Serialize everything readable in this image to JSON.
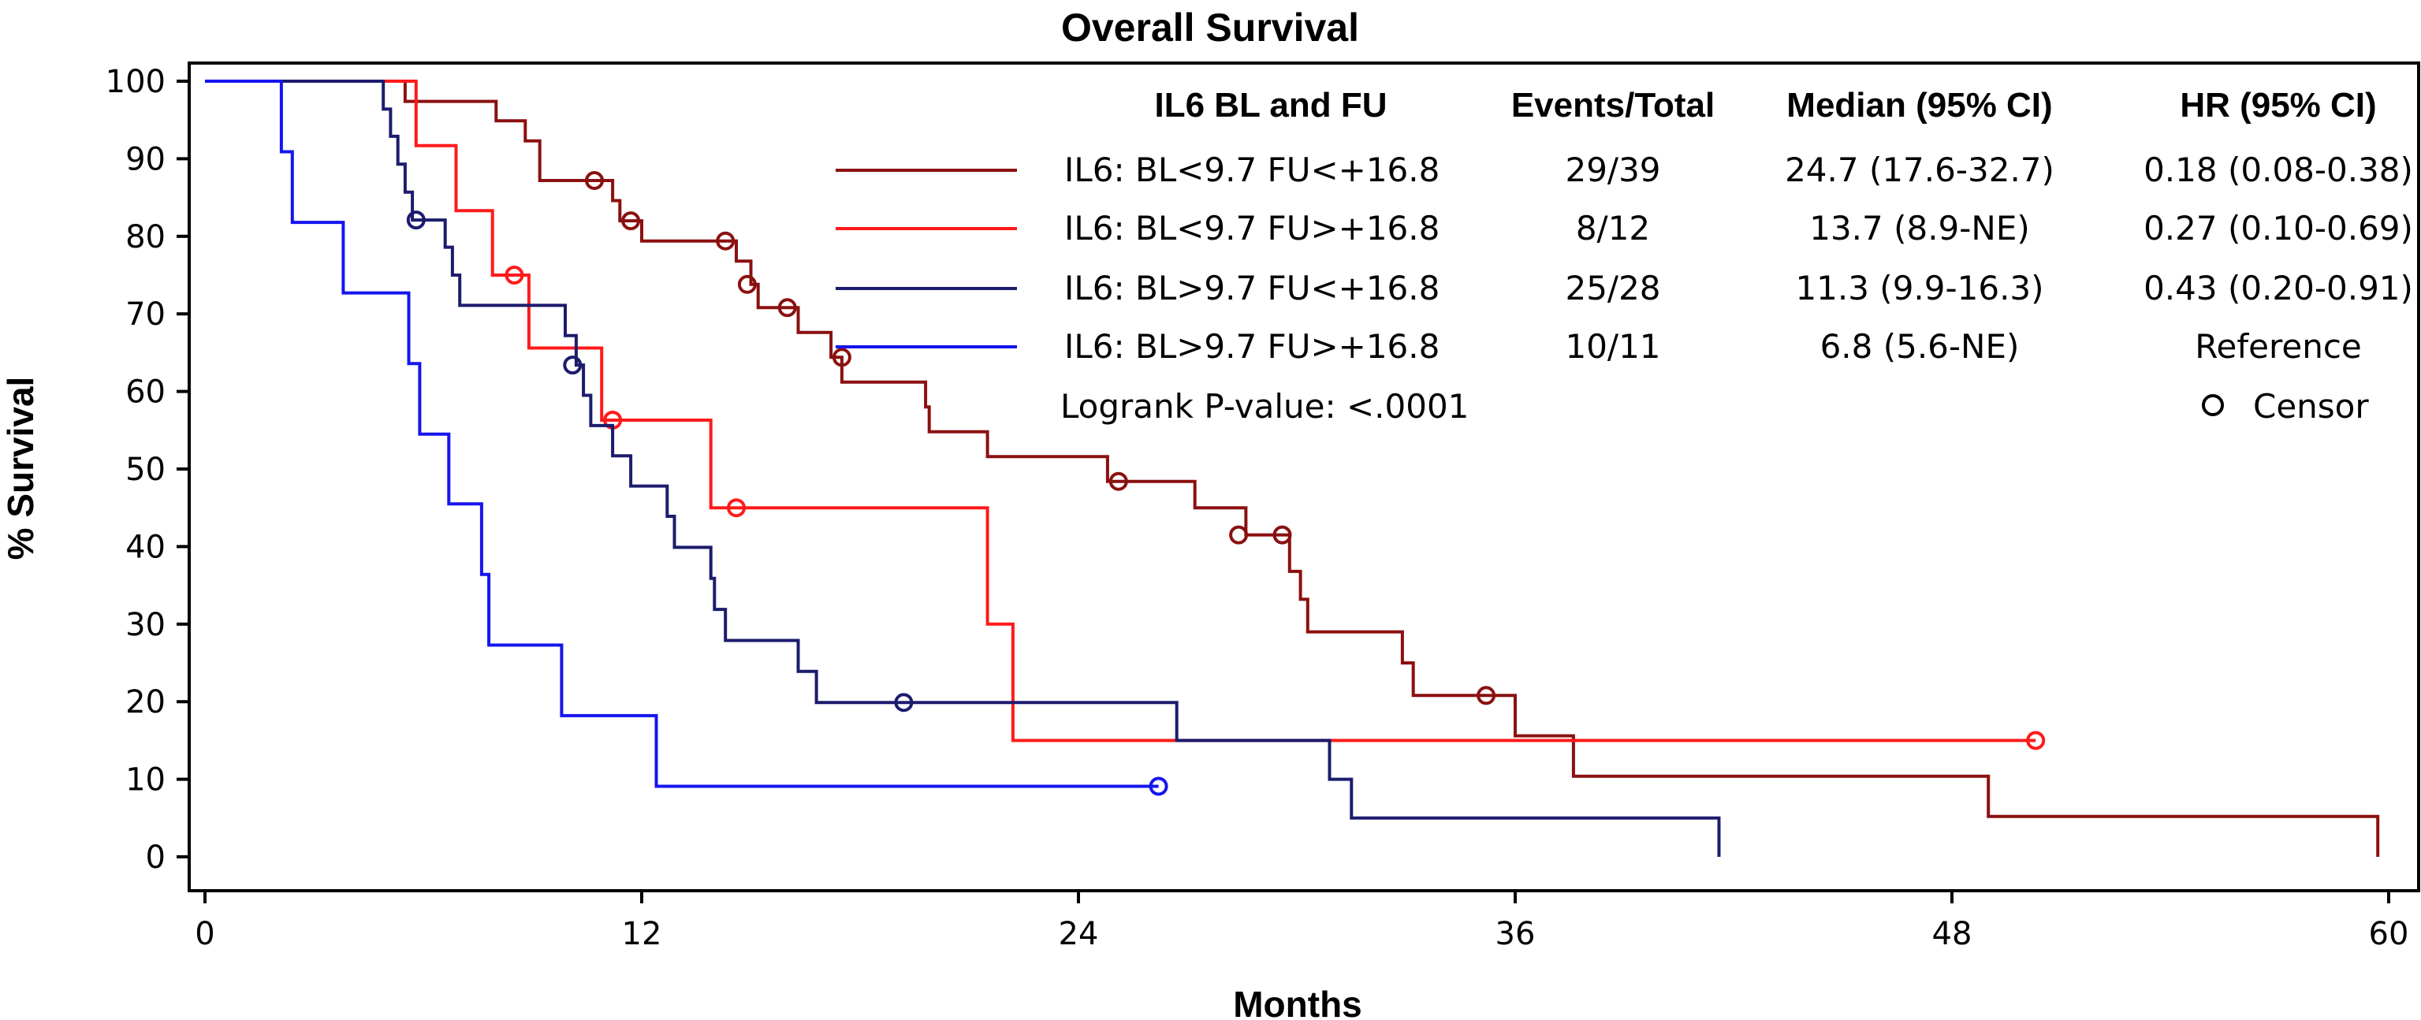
{
  "chart_data": {
    "type": "line",
    "subtype": "kaplan-meier",
    "title": "Overall Survival",
    "xlabel": "Months",
    "ylabel": "% Survival",
    "xlim": [
      0,
      60
    ],
    "ylim": [
      0,
      100
    ],
    "x_ticks": [
      0,
      12,
      24,
      36,
      48,
      60
    ],
    "y_ticks": [
      0,
      10,
      20,
      30,
      40,
      50,
      60,
      70,
      80,
      90,
      100
    ],
    "legend": {
      "headers": {
        "group": "IL6 BL and FU",
        "events": "Events/Total",
        "median": "Median (95% CI)",
        "hr": "HR (95% CI)"
      },
      "logrank": "Logrank P-value: <.0001",
      "censor_label": "Censor"
    },
    "series": [
      {
        "name": "IL6: BL<9.7 FU<+16.8",
        "color": "#8b1010",
        "events_total": "29/39",
        "median_ci": "24.7 (17.6-32.7)",
        "hr_ci": "0.18 (0.08-0.38)",
        "steps": [
          [
            0,
            100
          ],
          [
            5.5,
            100
          ],
          [
            5.5,
            97.4
          ],
          [
            8,
            97.4
          ],
          [
            8,
            94.9
          ],
          [
            8.8,
            94.9
          ],
          [
            8.8,
            92.3
          ],
          [
            9.2,
            92.3
          ],
          [
            9.2,
            87.2
          ],
          [
            11.2,
            87.2
          ],
          [
            11.2,
            84.6
          ],
          [
            11.4,
            84.6
          ],
          [
            11.4,
            82
          ],
          [
            12,
            82
          ],
          [
            12,
            79.4
          ],
          [
            14.6,
            79.4
          ],
          [
            14.6,
            76.8
          ],
          [
            15,
            76.8
          ],
          [
            15,
            73.8
          ],
          [
            15.2,
            73.8
          ],
          [
            15.2,
            70.8
          ],
          [
            16.3,
            70.8
          ],
          [
            16.3,
            67.6
          ],
          [
            17.2,
            67.6
          ],
          [
            17.2,
            64.4
          ],
          [
            17.5,
            64.4
          ],
          [
            17.5,
            61.2
          ],
          [
            19.8,
            61.2
          ],
          [
            19.8,
            58
          ],
          [
            19.9,
            58
          ],
          [
            19.9,
            54.8
          ],
          [
            21.5,
            54.8
          ],
          [
            21.5,
            51.6
          ],
          [
            24.8,
            51.6
          ],
          [
            24.8,
            48.4
          ],
          [
            27.2,
            48.4
          ],
          [
            27.2,
            45
          ],
          [
            28.6,
            45
          ],
          [
            28.6,
            41.5
          ],
          [
            29.8,
            41.5
          ],
          [
            29.8,
            36.8
          ],
          [
            30.1,
            36.8
          ],
          [
            30.1,
            33.2
          ],
          [
            30.3,
            33.2
          ],
          [
            30.3,
            29
          ],
          [
            32.9,
            29
          ],
          [
            32.9,
            25
          ],
          [
            33.2,
            25
          ],
          [
            33.2,
            20.8
          ],
          [
            36,
            20.8
          ],
          [
            36,
            15.6
          ],
          [
            37.6,
            15.6
          ],
          [
            37.6,
            10.4
          ],
          [
            49,
            10.4
          ],
          [
            49,
            5.2
          ],
          [
            59.7,
            5.2
          ],
          [
            59.7,
            0
          ]
        ],
        "censors": [
          [
            10.7,
            87.2
          ],
          [
            11.7,
            82
          ],
          [
            14.3,
            79.4
          ],
          [
            14.9,
            73.8
          ],
          [
            16,
            70.8
          ],
          [
            17.5,
            64.4
          ],
          [
            25.1,
            48.4
          ],
          [
            28.4,
            41.5
          ],
          [
            29.6,
            41.5
          ],
          [
            35.2,
            20.8
          ]
        ]
      },
      {
        "name": "IL6: BL<9.7 FU>+16.8",
        "color": "#ff1a1a",
        "events_total": "8/12",
        "median_ci": "13.7 (8.9-NE)",
        "hr_ci": "0.27 (0.10-0.69)",
        "steps": [
          [
            0,
            100
          ],
          [
            5.8,
            100
          ],
          [
            5.8,
            91.7
          ],
          [
            6.9,
            91.7
          ],
          [
            6.9,
            83.3
          ],
          [
            7.9,
            83.3
          ],
          [
            7.9,
            75
          ],
          [
            8.9,
            75
          ],
          [
            8.9,
            65.6
          ],
          [
            10.9,
            65.6
          ],
          [
            10.9,
            56.3
          ],
          [
            13.9,
            56.3
          ],
          [
            13.9,
            45
          ],
          [
            21.5,
            45
          ],
          [
            21.5,
            30
          ],
          [
            22.2,
            30
          ],
          [
            22.2,
            15
          ],
          [
            50.3,
            15
          ]
        ],
        "censors": [
          [
            8.5,
            75
          ],
          [
            11.2,
            56.3
          ],
          [
            14.6,
            45
          ],
          [
            50.3,
            15
          ]
        ]
      },
      {
        "name": "IL6: BL>9.7 FU<+16.8",
        "color": "#1c1c6e",
        "events_total": "25/28",
        "median_ci": "11.3 (9.9-16.3)",
        "hr_ci": "0.43 (0.20-0.91)",
        "steps": [
          [
            0,
            100
          ],
          [
            4.9,
            100
          ],
          [
            4.9,
            96.4
          ],
          [
            5.1,
            96.4
          ],
          [
            5.1,
            92.9
          ],
          [
            5.3,
            92.9
          ],
          [
            5.3,
            89.3
          ],
          [
            5.5,
            89.3
          ],
          [
            5.5,
            85.7
          ],
          [
            5.7,
            85.7
          ],
          [
            5.7,
            82.1
          ],
          [
            6.6,
            82.1
          ],
          [
            6.6,
            78.6
          ],
          [
            6.8,
            78.6
          ],
          [
            6.8,
            75
          ],
          [
            7,
            75
          ],
          [
            7,
            71.1
          ],
          [
            9.9,
            71.1
          ],
          [
            9.9,
            67.2
          ],
          [
            10.2,
            67.2
          ],
          [
            10.2,
            63.4
          ],
          [
            10.4,
            63.4
          ],
          [
            10.4,
            59.5
          ],
          [
            10.6,
            59.5
          ],
          [
            10.6,
            55.6
          ],
          [
            11.2,
            55.6
          ],
          [
            11.2,
            51.7
          ],
          [
            11.7,
            51.7
          ],
          [
            11.7,
            47.8
          ],
          [
            12.7,
            47.8
          ],
          [
            12.7,
            43.9
          ],
          [
            12.9,
            43.9
          ],
          [
            12.9,
            39.9
          ],
          [
            13.9,
            39.9
          ],
          [
            13.9,
            35.9
          ],
          [
            14,
            35.9
          ],
          [
            14,
            31.9
          ],
          [
            14.3,
            31.9
          ],
          [
            14.3,
            27.9
          ],
          [
            16.3,
            27.9
          ],
          [
            16.3,
            23.9
          ],
          [
            16.8,
            23.9
          ],
          [
            16.8,
            19.9
          ],
          [
            26.7,
            19.9
          ],
          [
            26.7,
            15
          ],
          [
            30.9,
            15
          ],
          [
            30.9,
            10
          ],
          [
            31.5,
            10
          ],
          [
            31.5,
            5
          ],
          [
            41.6,
            5
          ],
          [
            41.6,
            0
          ]
        ],
        "censors": [
          [
            5.8,
            82.1
          ],
          [
            10.1,
            63.4
          ],
          [
            19.2,
            19.9
          ]
        ]
      },
      {
        "name": "IL6: BL>9.7 FU>+16.8",
        "color": "#1515ee",
        "events_total": "10/11",
        "median_ci": "6.8 (5.6-NE)",
        "hr_ci": "Reference",
        "steps": [
          [
            0,
            100
          ],
          [
            2.1,
            100
          ],
          [
            2.1,
            90.9
          ],
          [
            2.4,
            90.9
          ],
          [
            2.4,
            81.8
          ],
          [
            3.8,
            81.8
          ],
          [
            3.8,
            72.7
          ],
          [
            5.6,
            72.7
          ],
          [
            5.6,
            63.6
          ],
          [
            5.9,
            63.6
          ],
          [
            5.9,
            54.5
          ],
          [
            6.7,
            54.5
          ],
          [
            6.7,
            45.5
          ],
          [
            7.6,
            45.5
          ],
          [
            7.6,
            36.4
          ],
          [
            7.8,
            36.4
          ],
          [
            7.8,
            27.3
          ],
          [
            9.8,
            27.3
          ],
          [
            9.8,
            18.2
          ],
          [
            12.4,
            18.2
          ],
          [
            12.4,
            9.1
          ],
          [
            26.2,
            9.1
          ]
        ],
        "censors": [
          [
            26.2,
            9.1
          ]
        ]
      }
    ]
  }
}
